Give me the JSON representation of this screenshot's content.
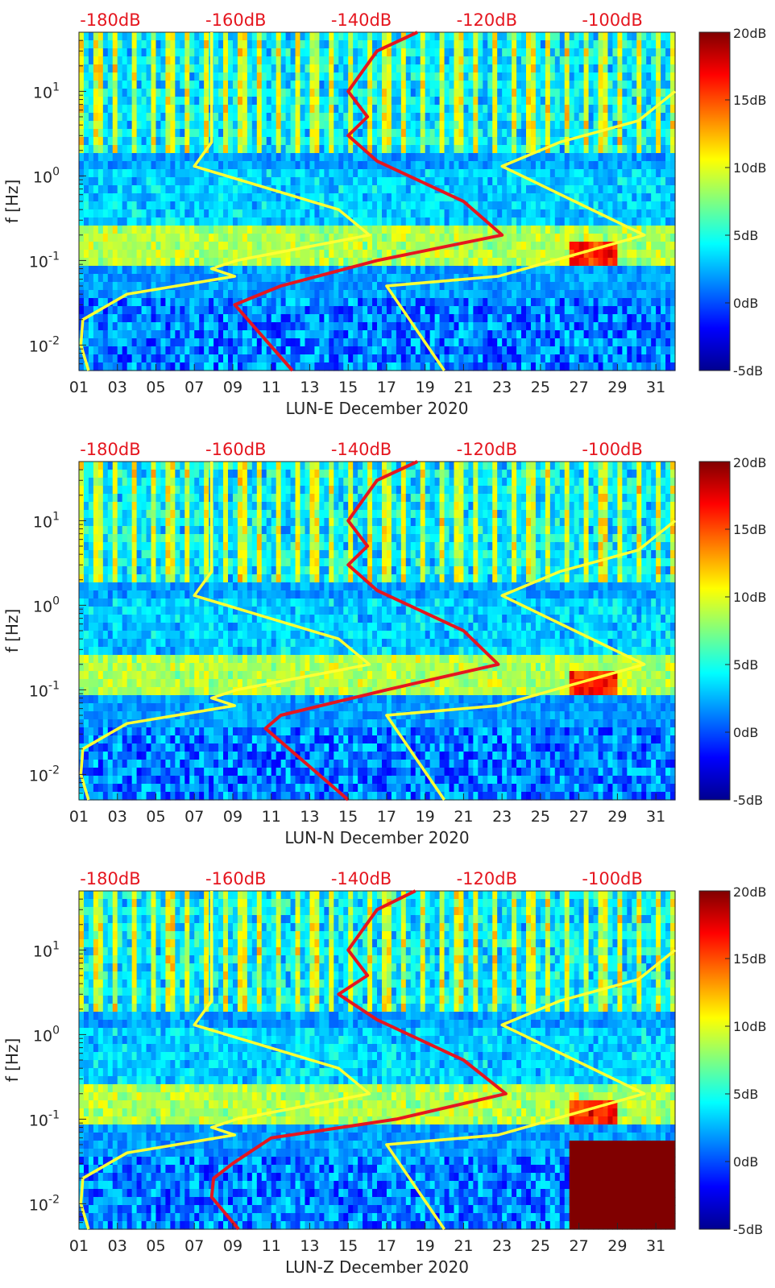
{
  "chart_data": [
    {
      "type": "heatmap",
      "xlabel": "LUN-E December 2020",
      "ylabel": "f [Hz]",
      "x_ticks": [
        "01",
        "03",
        "05",
        "07",
        "09",
        "11",
        "13",
        "15",
        "17",
        "19",
        "21",
        "23",
        "25",
        "27",
        "29",
        "31"
      ],
      "x_range": [
        1,
        32
      ],
      "y_scale": "log",
      "y_range": [
        0.005,
        50
      ],
      "y_ticks": [
        {
          "value": 0.01,
          "base": "10",
          "exp": "-2"
        },
        {
          "value": 0.1,
          "base": "10",
          "exp": "-1"
        },
        {
          "value": 1,
          "base": "10",
          "exp": "0"
        },
        {
          "value": 10,
          "base": "10",
          "exp": "1"
        }
      ],
      "top_axis_labels": [
        "-180dB",
        "-160dB",
        "-140dB",
        "-120dB",
        "-100dB"
      ],
      "top_axis_range": [
        -185,
        -90
      ],
      "colorbar": {
        "range": [
          -5,
          20
        ],
        "labels": [
          "20dB",
          "15dB",
          "10dB",
          "5dB",
          "0dB",
          "-5dB"
        ]
      },
      "series": [
        {
          "color": "#ffff33",
          "f": [
            0.005,
            0.01,
            0.02,
            0.04,
            0.065,
            0.08,
            0.1,
            0.2,
            0.4,
            1.3,
            2.5,
            50
          ],
          "x": [
            1.5,
            1.1,
            1.2,
            3.5,
            9.1,
            7.9,
            9.2,
            16.1,
            14.5,
            7.0,
            7.9,
            7.9
          ]
        },
        {
          "color": "#ffff33",
          "f": [
            0.005,
            0.05,
            0.065,
            0.1,
            0.2,
            1.3,
            2.5,
            4.5,
            10
          ],
          "x": [
            20.0,
            17.0,
            22.8,
            25.7,
            30.4,
            23.0,
            26.0,
            30.1,
            32.0
          ]
        },
        {
          "color": "#e5161f",
          "f": [
            0.005,
            0.03,
            0.05,
            0.1,
            0.2,
            0.5,
            1.5,
            3.0,
            5.0,
            10,
            30,
            50
          ],
          "x": [
            12.1,
            9.1,
            11.5,
            16.5,
            23.0,
            21.0,
            16.5,
            15.0,
            16.0,
            15.0,
            16.5,
            18.6
          ]
        }
      ]
    },
    {
      "type": "heatmap",
      "xlabel": "LUN-N December 2020",
      "ylabel": "f [Hz]",
      "x_ticks": [
        "01",
        "03",
        "05",
        "07",
        "09",
        "11",
        "13",
        "15",
        "17",
        "19",
        "21",
        "23",
        "25",
        "27",
        "29",
        "31"
      ],
      "x_range": [
        1,
        32
      ],
      "y_scale": "log",
      "y_range": [
        0.005,
        50
      ],
      "y_ticks": [
        {
          "value": 0.01,
          "base": "10",
          "exp": "-2"
        },
        {
          "value": 0.1,
          "base": "10",
          "exp": "-1"
        },
        {
          "value": 1,
          "base": "10",
          "exp": "0"
        },
        {
          "value": 10,
          "base": "10",
          "exp": "1"
        }
      ],
      "top_axis_labels": [
        "-180dB",
        "-160dB",
        "-140dB",
        "-120dB",
        "-100dB"
      ],
      "top_axis_range": [
        -185,
        -90
      ],
      "colorbar": {
        "range": [
          -5,
          20
        ],
        "labels": [
          "20dB",
          "15dB",
          "10dB",
          "5dB",
          "0dB",
          "-5dB"
        ]
      },
      "series": [
        {
          "color": "#ffff33",
          "f": [
            0.005,
            0.01,
            0.02,
            0.04,
            0.065,
            0.08,
            0.1,
            0.2,
            0.4,
            1.3,
            2.5,
            50
          ],
          "x": [
            1.5,
            1.1,
            1.2,
            3.5,
            9.1,
            7.9,
            9.2,
            16.1,
            14.5,
            7.0,
            7.9,
            7.9
          ]
        },
        {
          "color": "#ffff33",
          "f": [
            0.005,
            0.05,
            0.065,
            0.1,
            0.2,
            1.3,
            2.5,
            4.5,
            10
          ],
          "x": [
            20.0,
            17.0,
            22.8,
            25.7,
            30.4,
            23.0,
            26.0,
            30.1,
            32.0
          ]
        },
        {
          "color": "#e5161f",
          "f": [
            0.005,
            0.035,
            0.05,
            0.1,
            0.2,
            0.5,
            1.5,
            3.0,
            5.0,
            10,
            30,
            50
          ],
          "x": [
            15.0,
            10.7,
            11.5,
            17.0,
            22.8,
            21.0,
            16.5,
            15.0,
            16.0,
            15.0,
            16.5,
            18.6
          ]
        }
      ]
    },
    {
      "type": "heatmap",
      "xlabel": "LUN-Z December 2020",
      "ylabel": "f [Hz]",
      "x_ticks": [
        "01",
        "03",
        "05",
        "07",
        "09",
        "11",
        "13",
        "15",
        "17",
        "19",
        "21",
        "23",
        "25",
        "27",
        "29",
        "31"
      ],
      "x_range": [
        1,
        32
      ],
      "y_scale": "log",
      "y_range": [
        0.005,
        50
      ],
      "y_ticks": [
        {
          "value": 0.01,
          "base": "10",
          "exp": "-2"
        },
        {
          "value": 0.1,
          "base": "10",
          "exp": "-1"
        },
        {
          "value": 1,
          "base": "10",
          "exp": "0"
        },
        {
          "value": 10,
          "base": "10",
          "exp": "1"
        }
      ],
      "top_axis_labels": [
        "-180dB",
        "-160dB",
        "-140dB",
        "-120dB",
        "-100dB"
      ],
      "top_axis_range": [
        -185,
        -90
      ],
      "colorbar": {
        "range": [
          -5,
          20
        ],
        "labels": [
          "20dB",
          "15dB",
          "10dB",
          "5dB",
          "0dB",
          "-5dB"
        ]
      },
      "series": [
        {
          "color": "#ffff33",
          "f": [
            0.005,
            0.01,
            0.02,
            0.04,
            0.065,
            0.08,
            0.1,
            0.2,
            0.4,
            1.3,
            2.5,
            50
          ],
          "x": [
            1.5,
            1.1,
            1.2,
            3.5,
            9.1,
            7.9,
            9.2,
            16.1,
            14.5,
            7.0,
            7.9,
            7.9
          ]
        },
        {
          "color": "#ffff33",
          "f": [
            0.005,
            0.05,
            0.065,
            0.1,
            0.2,
            1.3,
            2.5,
            4.5,
            10
          ],
          "x": [
            20.0,
            17.0,
            22.8,
            25.7,
            30.4,
            23.0,
            26.0,
            30.1,
            32.0
          ]
        },
        {
          "color": "#e5161f",
          "f": [
            0.005,
            0.012,
            0.02,
            0.03,
            0.06,
            0.1,
            0.2,
            0.5,
            1.5,
            3.0,
            5.0,
            10,
            30,
            50
          ],
          "x": [
            9.3,
            7.9,
            8.0,
            9.0,
            11.0,
            17.5,
            23.2,
            21.0,
            16.5,
            14.5,
            16.0,
            15.0,
            16.5,
            18.5
          ]
        }
      ]
    }
  ]
}
